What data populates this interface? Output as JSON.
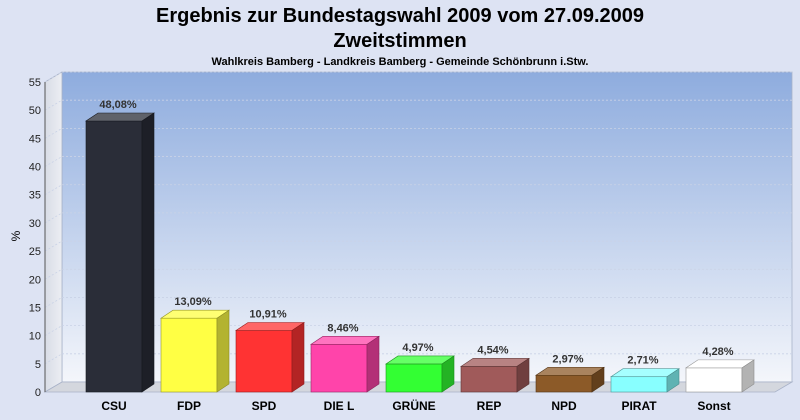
{
  "chart_data": {
    "type": "bar",
    "title": "Ergebnis zur Bundestagswahl 2009 vom 27.09.2009",
    "subtitle": "Zweitstimmen",
    "subtitle2": "Wahlkreis Bamberg - Landkreis Bamberg - Gemeinde Schönbrunn i.Stw.",
    "xlabel": "",
    "ylabel": "%",
    "ylim": [
      0,
      55
    ],
    "yticks": [
      0,
      5,
      10,
      15,
      20,
      25,
      30,
      35,
      40,
      45,
      50,
      55
    ],
    "categories": [
      "CSU",
      "FDP",
      "SPD",
      "DIE L",
      "GRÜNE",
      "REP",
      "NPD",
      "PIRAT",
      "Sonst"
    ],
    "values": [
      48.08,
      13.09,
      10.91,
      8.46,
      4.97,
      4.54,
      2.97,
      2.71,
      4.28
    ],
    "value_labels": [
      "48,08%",
      "13,09%",
      "10,91%",
      "8,46%",
      "4,97%",
      "4,54%",
      "2,97%",
      "2,71%",
      "4,28%"
    ],
    "colors": [
      "#2a2d38",
      "#ffff44",
      "#ff3333",
      "#ff44aa",
      "#33ff33",
      "#a05a5a",
      "#8c5a28",
      "#88ffff",
      "#ffffff"
    ],
    "grid": true
  }
}
